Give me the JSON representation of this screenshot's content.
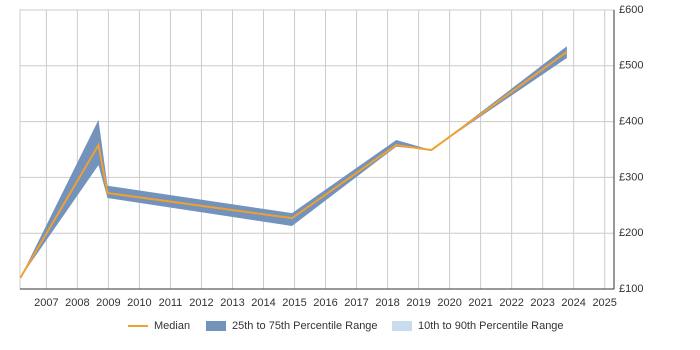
{
  "chart_data": {
    "type": "line",
    "x": [
      2006.16,
      2008.68,
      2008.97,
      2014.92,
      2018.28,
      2019.41,
      2023.78
    ],
    "series": [
      {
        "name": "Median",
        "color": "#f0a030",
        "values": [
          120,
          358,
          272,
          227,
          358,
          349,
          525
        ]
      }
    ],
    "bands": [
      {
        "name": "25th to 75th Percentile Range",
        "color": "#7393bd",
        "lower": [
          120,
          322,
          263,
          213,
          355,
          349,
          514
        ],
        "upper": [
          120,
          403,
          285,
          236,
          367,
          349,
          535
        ]
      },
      {
        "name": "10th to 90th Percentile Range",
        "color": "#c9dcee"
      }
    ],
    "xlim": [
      2006.15,
      2025.3
    ],
    "xticks": [
      2007,
      2008,
      2009,
      2010,
      2011,
      2012,
      2013,
      2014,
      2015,
      2016,
      2017,
      2018,
      2019,
      2020,
      2021,
      2022,
      2023,
      2024,
      2025
    ],
    "ylim": [
      100,
      600
    ],
    "yticks": [
      {
        "value": 100,
        "label": "£100"
      },
      {
        "value": 200,
        "label": "£200"
      },
      {
        "value": 300,
        "label": "£300"
      },
      {
        "value": 400,
        "label": "£400"
      },
      {
        "value": 500,
        "label": "£500"
      },
      {
        "value": 600,
        "label": "£600"
      }
    ],
    "grid": true
  }
}
